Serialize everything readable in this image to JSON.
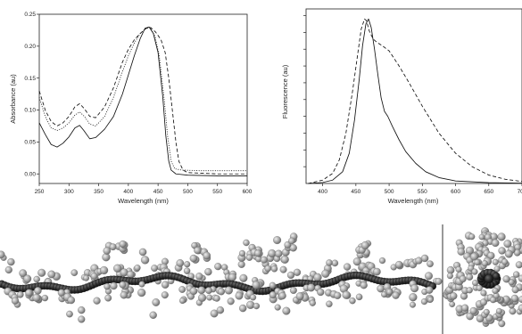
{
  "chart_data": [
    {
      "type": "line",
      "xlabel": "Wavelength (nm)",
      "ylabel": "Absorbance (au)",
      "xlim": [
        250,
        600
      ],
      "ylim": [
        -0.015,
        0.25
      ],
      "x_ticks": [
        "250",
        "300",
        "350",
        "400",
        "450",
        "500",
        "550",
        "600"
      ],
      "y_ticks": [
        "0.00",
        "0.05",
        "0.10",
        "0.15",
        "0.20",
        "0.25"
      ],
      "grid": false,
      "series": [
        {
          "style": "solid",
          "points": [
            [
              250,
              0.08
            ],
            [
              260,
              0.062
            ],
            [
              270,
              0.046
            ],
            [
              280,
              0.042
            ],
            [
              290,
              0.048
            ],
            [
              300,
              0.058
            ],
            [
              310,
              0.072
            ],
            [
              318,
              0.076
            ],
            [
              325,
              0.068
            ],
            [
              335,
              0.055
            ],
            [
              345,
              0.057
            ],
            [
              360,
              0.07
            ],
            [
              375,
              0.09
            ],
            [
              390,
              0.125
            ],
            [
              400,
              0.155
            ],
            [
              410,
              0.185
            ],
            [
              420,
              0.212
            ],
            [
              428,
              0.228
            ],
            [
              435,
              0.23
            ],
            [
              442,
              0.22
            ],
            [
              450,
              0.19
            ],
            [
              458,
              0.12
            ],
            [
              463,
              0.06
            ],
            [
              468,
              0.02
            ],
            [
              472,
              0.006
            ],
            [
              480,
              0.0
            ],
            [
              500,
              -0.002
            ],
            [
              550,
              -0.003
            ],
            [
              600,
              -0.003
            ]
          ]
        },
        {
          "style": "dashed",
          "points": [
            [
              250,
              0.13
            ],
            [
              260,
              0.1
            ],
            [
              270,
              0.082
            ],
            [
              280,
              0.075
            ],
            [
              290,
              0.08
            ],
            [
              300,
              0.09
            ],
            [
              310,
              0.105
            ],
            [
              318,
              0.11
            ],
            [
              326,
              0.102
            ],
            [
              335,
              0.09
            ],
            [
              345,
              0.088
            ],
            [
              360,
              0.105
            ],
            [
              375,
              0.135
            ],
            [
              390,
              0.175
            ],
            [
              400,
              0.195
            ],
            [
              410,
              0.21
            ],
            [
              420,
              0.22
            ],
            [
              430,
              0.228
            ],
            [
              438,
              0.229
            ],
            [
              446,
              0.222
            ],
            [
              455,
              0.21
            ],
            [
              462,
              0.19
            ],
            [
              468,
              0.15
            ],
            [
              474,
              0.1
            ],
            [
              480,
              0.05
            ],
            [
              485,
              0.02
            ],
            [
              492,
              0.006
            ],
            [
              500,
              0.002
            ],
            [
              550,
              0.0
            ],
            [
              600,
              0.0
            ]
          ]
        },
        {
          "style": "dotted",
          "points": [
            [
              250,
              0.12
            ],
            [
              260,
              0.09
            ],
            [
              270,
              0.072
            ],
            [
              280,
              0.068
            ],
            [
              290,
              0.072
            ],
            [
              300,
              0.08
            ],
            [
              310,
              0.092
            ],
            [
              318,
              0.097
            ],
            [
              326,
              0.09
            ],
            [
              335,
              0.078
            ],
            [
              345,
              0.075
            ],
            [
              360,
              0.09
            ],
            [
              375,
              0.12
            ],
            [
              390,
              0.16
            ],
            [
              400,
              0.185
            ],
            [
              410,
              0.205
            ],
            [
              420,
              0.22
            ],
            [
              430,
              0.228
            ],
            [
              437,
              0.229
            ],
            [
              445,
              0.215
            ],
            [
              452,
              0.185
            ],
            [
              460,
              0.12
            ],
            [
              466,
              0.06
            ],
            [
              472,
              0.02
            ],
            [
              478,
              0.008
            ],
            [
              490,
              0.006
            ],
            [
              520,
              0.005
            ],
            [
              560,
              0.005
            ],
            [
              600,
              0.005
            ]
          ]
        }
      ]
    },
    {
      "type": "line",
      "xlabel": "Wavelength (nm)",
      "ylabel": "Fluorescence (au)",
      "xlim": [
        375,
        700
      ],
      "ylim": [
        0,
        1.04
      ],
      "x_ticks": [
        "400",
        "450",
        "500",
        "550",
        "600",
        "650",
        "700"
      ],
      "y_ticks": [],
      "grid": false,
      "series": [
        {
          "style": "solid",
          "points": [
            [
              378,
              0.0
            ],
            [
              400,
              0.006
            ],
            [
              415,
              0.02
            ],
            [
              430,
              0.07
            ],
            [
              440,
              0.18
            ],
            [
              448,
              0.38
            ],
            [
              455,
              0.62
            ],
            [
              460,
              0.82
            ],
            [
              465,
              0.95
            ],
            [
              469,
              0.98
            ],
            [
              473,
              0.93
            ],
            [
              478,
              0.8
            ],
            [
              483,
              0.65
            ],
            [
              488,
              0.51
            ],
            [
              493,
              0.43
            ],
            [
              498,
              0.4
            ],
            [
              505,
              0.34
            ],
            [
              515,
              0.26
            ],
            [
              525,
              0.19
            ],
            [
              540,
              0.12
            ],
            [
              555,
              0.07
            ],
            [
              575,
              0.035
            ],
            [
              600,
              0.015
            ],
            [
              650,
              0.005
            ],
            [
              700,
              0.002
            ]
          ]
        },
        {
          "style": "dashed",
          "points": [
            [
              378,
              0.0
            ],
            [
              400,
              0.02
            ],
            [
              415,
              0.06
            ],
            [
              425,
              0.14
            ],
            [
              435,
              0.3
            ],
            [
              445,
              0.55
            ],
            [
              452,
              0.75
            ],
            [
              458,
              0.92
            ],
            [
              463,
              0.98
            ],
            [
              466,
              0.97
            ],
            [
              470,
              0.91
            ],
            [
              476,
              0.86
            ],
            [
              482,
              0.84
            ],
            [
              490,
              0.82
            ],
            [
              500,
              0.79
            ],
            [
              515,
              0.7
            ],
            [
              530,
              0.6
            ],
            [
              550,
              0.46
            ],
            [
              575,
              0.3
            ],
            [
              600,
              0.18
            ],
            [
              625,
              0.1
            ],
            [
              650,
              0.05
            ],
            [
              675,
              0.025
            ],
            [
              700,
              0.012
            ]
          ]
        }
      ]
    }
  ],
  "panel_c_colors": {
    "backbone": "#2b2b2b",
    "side_chain": "#a8a8a8"
  },
  "panel_d_colors": {
    "backbone": "#2b2b2b",
    "side_chain": "#a8a8a8"
  }
}
